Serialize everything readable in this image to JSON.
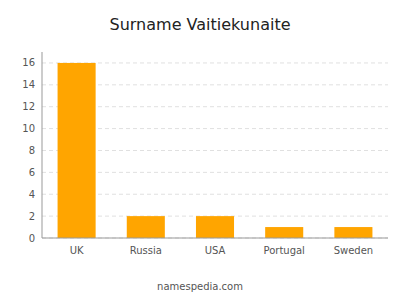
{
  "chart_data": {
    "type": "bar",
    "title": "Surname Vaitiekunaite",
    "categories": [
      "UK",
      "Russia",
      "USA",
      "Portugal",
      "Sweden"
    ],
    "values": [
      16,
      2,
      2,
      1,
      1
    ],
    "color": "#FFA500",
    "ylim": [
      0,
      17
    ],
    "yticks": [
      0,
      2,
      4,
      6,
      8,
      10,
      12,
      14,
      16
    ],
    "grid": true,
    "annotations": [
      "namespedia.com"
    ]
  }
}
